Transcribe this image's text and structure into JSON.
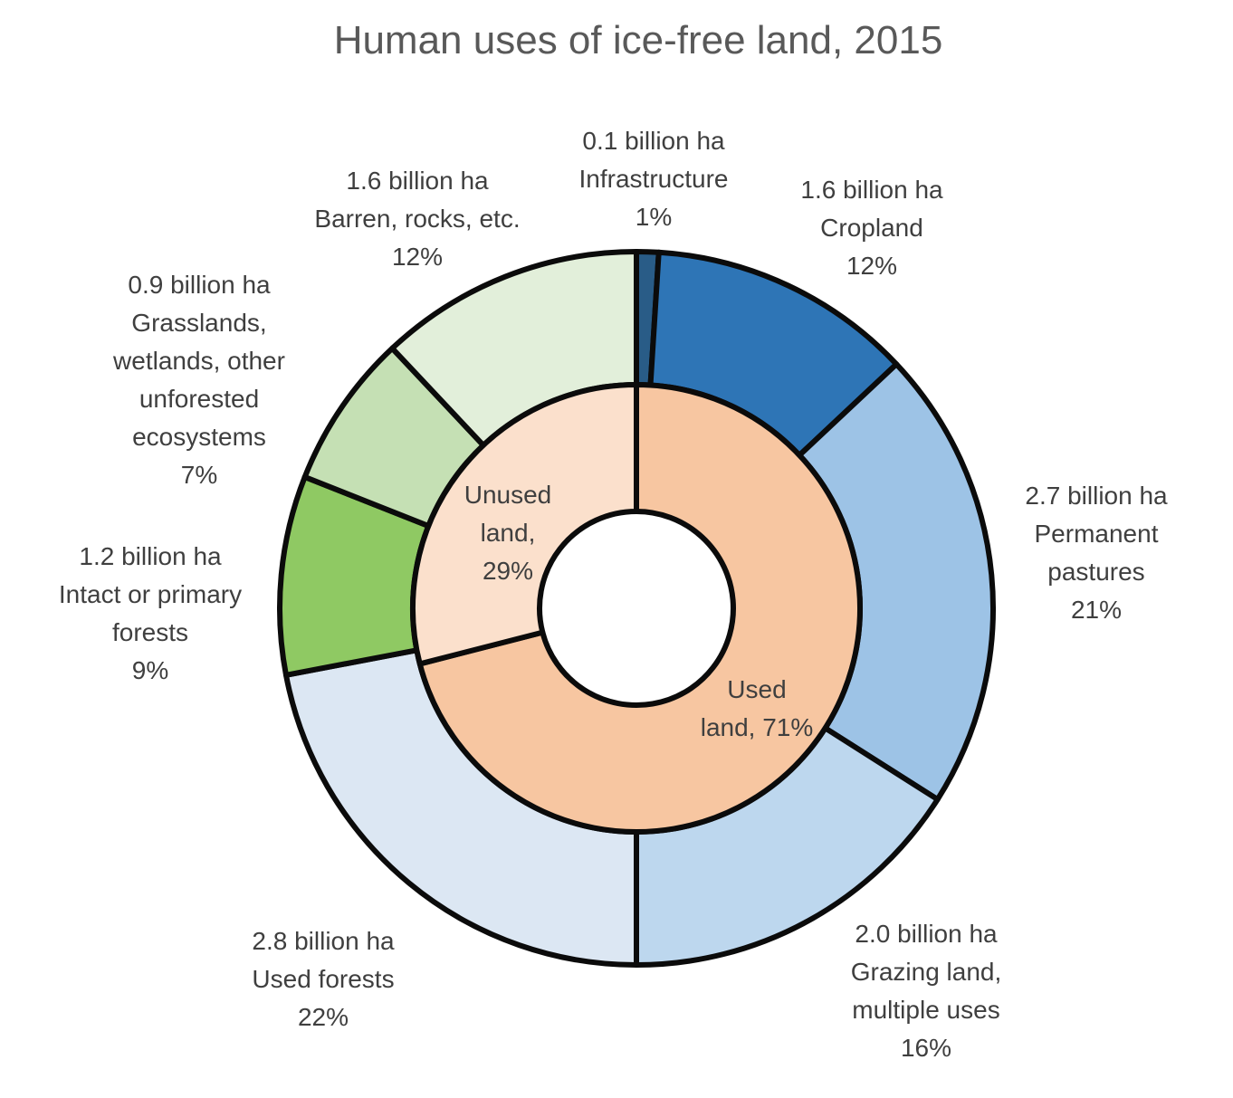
{
  "title": "Human uses of ice-free land, 2015",
  "colors": {
    "background": "#ffffff",
    "segment_outline": "#0b0b0b",
    "title_text": "#595959",
    "label_text": "#3f3f3f"
  },
  "chart_data": {
    "type": "pie",
    "variant": "two-ring-donut",
    "title": "Human uses of ice-free land, 2015",
    "units": "billion ha",
    "legend_position": "none",
    "inner_ring": {
      "segments": [
        {
          "id": "used-land",
          "name": "Used land",
          "percent": 71,
          "color": "#F7C6A1"
        },
        {
          "id": "unused-land",
          "name": "Unused land",
          "percent": 29,
          "color": "#FBE0CC"
        }
      ]
    },
    "outer_ring": {
      "segments": [
        {
          "id": "infrastructure",
          "name": "Infrastructure",
          "value_billion_ha": 0.1,
          "percent": 1,
          "color": "#295C87"
        },
        {
          "id": "cropland",
          "name": "Cropland",
          "value_billion_ha": 1.6,
          "percent": 12,
          "color": "#2E75B6"
        },
        {
          "id": "permanent-pastures",
          "name": "Permanent pastures",
          "value_billion_ha": 2.7,
          "percent": 21,
          "color": "#9DC3E6"
        },
        {
          "id": "grazing-land",
          "name": "Grazing land, multiple uses",
          "value_billion_ha": 2.0,
          "percent": 16,
          "color": "#BDD7EE"
        },
        {
          "id": "used-forests",
          "name": "Used forests",
          "value_billion_ha": 2.8,
          "percent": 22,
          "color": "#DCE7F3"
        },
        {
          "id": "intact-forests",
          "name": "Intact or primary forests",
          "value_billion_ha": 1.2,
          "percent": 9,
          "color": "#8FC963"
        },
        {
          "id": "grasslands",
          "name": "Grasslands, wetlands, other unforested ecosystems",
          "value_billion_ha": 0.9,
          "percent": 7,
          "color": "#C5E0B4"
        },
        {
          "id": "barren",
          "name": "Barren, rocks, etc.",
          "value_billion_ha": 1.6,
          "percent": 12,
          "color": "#E2EFDA"
        }
      ]
    }
  },
  "labels": {
    "infrastructure": {
      "lines": [
        "0.1 billion ha",
        "Infrastructure",
        "1%"
      ]
    },
    "cropland": {
      "lines": [
        "1.6 billion ha",
        "Cropland",
        "12%"
      ]
    },
    "barren": {
      "lines": [
        "1.6 billion ha",
        "Barren, rocks, etc.",
        "12%"
      ]
    },
    "grasslands": {
      "lines": [
        "0.9 billion ha",
        "Grasslands,",
        "wetlands, other",
        "unforested",
        "ecosystems",
        "7%"
      ]
    },
    "intact": {
      "lines": [
        "1.2 billion ha",
        "Intact or primary",
        "forests",
        "9%"
      ]
    },
    "pastures": {
      "lines": [
        "2.7 billion ha",
        "Permanent",
        "pastures",
        "21%"
      ]
    },
    "used_forests": {
      "lines": [
        "2.8 billion ha",
        "Used forests",
        "22%"
      ]
    },
    "grazing": {
      "lines": [
        "2.0 billion ha",
        "Grazing land,",
        "multiple uses",
        "16%"
      ]
    },
    "unused_inner": {
      "lines": [
        "Unused",
        "land,",
        "29%"
      ]
    },
    "used_inner": {
      "lines": [
        "Used",
        "land, 71%"
      ]
    }
  }
}
